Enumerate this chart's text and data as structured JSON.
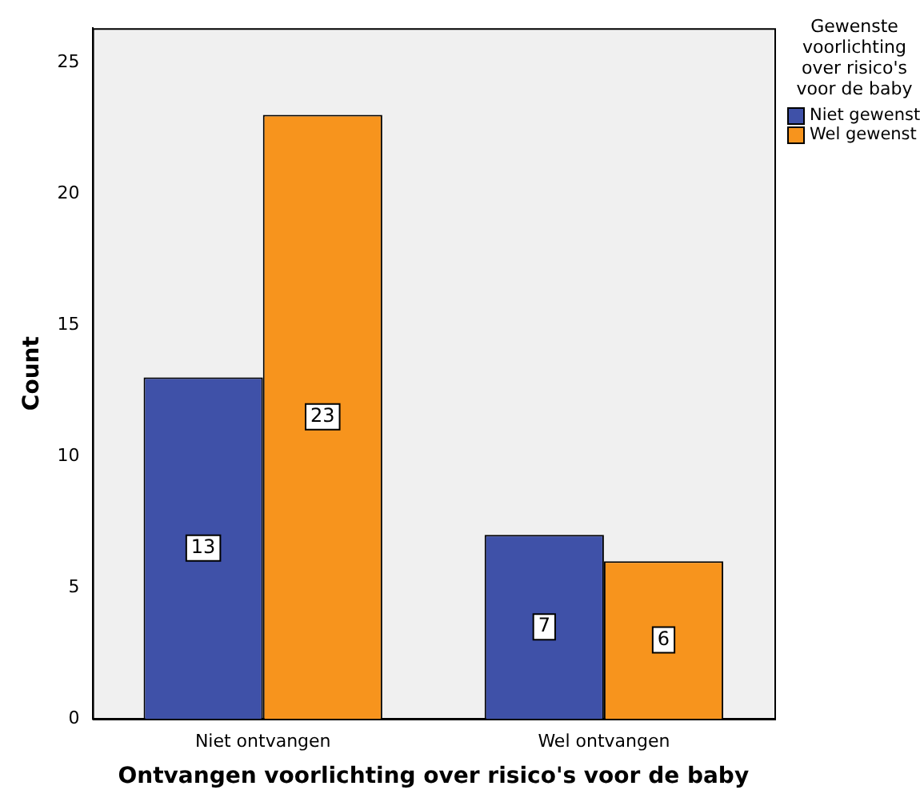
{
  "chart_data": {
    "type": "bar",
    "xlabel": "Ontvangen voorlichting over risico's voor de baby",
    "ylabel": "Count",
    "legend_title": "Gewenste voorlichting over risico's voor de baby",
    "categories": [
      "Niet ontvangen",
      "Wel ontvangen"
    ],
    "series": [
      {
        "name": "Niet gewenst",
        "color": "#3f51a8",
        "values": [
          13,
          7
        ]
      },
      {
        "name": "Wel gewenst",
        "color": "#f7941d",
        "values": [
          23,
          6
        ]
      }
    ],
    "ylim": [
      0,
      26.3
    ],
    "yticks": [
      0,
      5,
      10,
      15,
      20,
      25
    ],
    "grid": false,
    "legend": "top right",
    "data_labels": true
  }
}
